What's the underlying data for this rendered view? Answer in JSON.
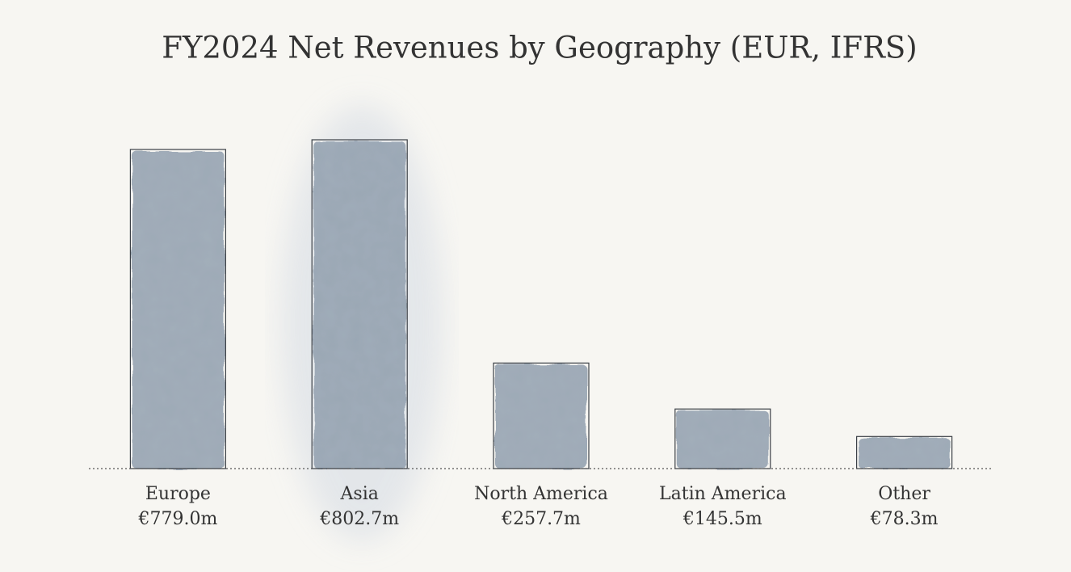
{
  "chart_data": {
    "type": "bar",
    "title": "FY2024 Net Revenues by Geography (EUR, IFRS)",
    "categories": [
      "Europe",
      "Asia",
      "North America",
      "Latin America",
      "Other"
    ],
    "values": [
      779.0,
      802.7,
      257.7,
      145.5,
      78.3
    ],
    "value_labels": [
      "€779.0m",
      "€802.7m",
      "€257.7m",
      "€145.5m",
      "€78.3m"
    ],
    "color": "#8e9dac"
  }
}
